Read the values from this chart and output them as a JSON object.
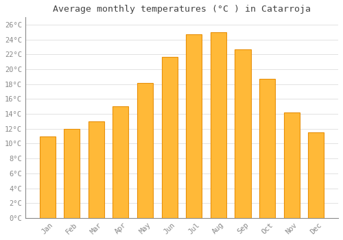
{
  "title": "Average monthly temperatures (°C ) in Catarroja",
  "months": [
    "Jan",
    "Feb",
    "Mar",
    "Apr",
    "May",
    "Jun",
    "Jul",
    "Aug",
    "Sep",
    "Oct",
    "Nov",
    "Dec"
  ],
  "values": [
    11,
    12,
    13,
    15,
    18.2,
    21.7,
    24.7,
    25,
    22.7,
    18.7,
    14.2,
    11.5
  ],
  "bar_color": "#FFA500",
  "bar_face_color": "#FFB938",
  "bar_edge_color": "#E8900A",
  "background_color": "#FFFFFF",
  "grid_color": "#DDDDDD",
  "text_color": "#888888",
  "title_color": "#444444",
  "ylim": [
    0,
    27
  ],
  "ytick_max": 26,
  "ytick_step": 2,
  "title_fontsize": 9.5,
  "tick_fontsize": 7.5,
  "font_family": "monospace",
  "figwidth": 5.0,
  "figheight": 3.5,
  "dpi": 100
}
